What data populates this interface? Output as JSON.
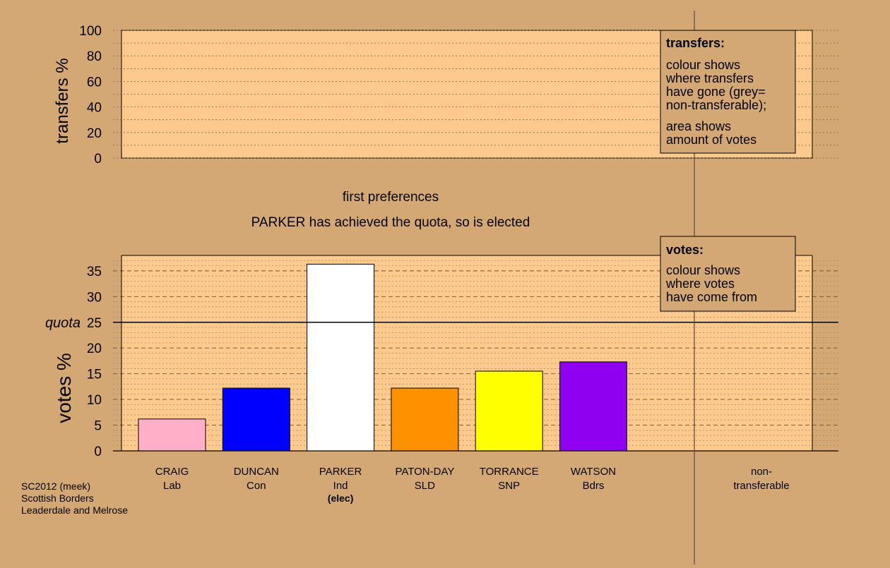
{
  "colors": {
    "background": "#d4a874",
    "plot_fill": "#fec98c",
    "info_box_fill": "#d4a874"
  },
  "header": {
    "stage_label": "first preferences",
    "status_message": "PARKER has achieved the quota, so is elected"
  },
  "footer": {
    "lines": [
      "SC2012 (meek)",
      "Scottish Borders",
      "Leaderdale and Melrose"
    ]
  },
  "transfers_box": {
    "title": "transfers:",
    "para1": [
      "colour shows",
      "where transfers",
      "have gone (grey=",
      "non-transferable);"
    ],
    "para2": [
      "area shows",
      "amount of votes"
    ]
  },
  "votes_box": {
    "title": "votes:",
    "para1": [
      "colour shows",
      "where votes",
      "have come from"
    ]
  },
  "chart_data": [
    {
      "type": "bar",
      "ylabel": "transfers %",
      "ylim": [
        0,
        100
      ],
      "yticks": [
        0,
        20,
        40,
        60,
        80,
        100
      ],
      "values": [],
      "grid": true
    },
    {
      "type": "bar",
      "ylabel": "votes %",
      "ylim": [
        0,
        38
      ],
      "yticks": [
        0,
        5,
        10,
        15,
        20,
        25,
        30,
        35
      ],
      "quota": 25,
      "quota_label": "quota",
      "grid": true,
      "categories": [
        {
          "name": "CRAIG",
          "party": "Lab",
          "value": 6.2,
          "color": "#ffb0c8",
          "note": ""
        },
        {
          "name": "DUNCAN",
          "party": "Con",
          "value": 12.2,
          "color": "#0000ff",
          "note": ""
        },
        {
          "name": "PARKER",
          "party": "Ind",
          "value": 36.3,
          "color": "#ffffff",
          "note": "(elec)"
        },
        {
          "name": "PATON-DAY",
          "party": "SLD",
          "value": 12.2,
          "color": "#ff9000",
          "note": ""
        },
        {
          "name": "TORRANCE",
          "party": "SNP",
          "value": 15.5,
          "color": "#ffff00",
          "note": ""
        },
        {
          "name": "WATSON",
          "party": "Bdrs",
          "value": 17.3,
          "color": "#9000f0",
          "note": ""
        }
      ],
      "nontransferable": {
        "label_lines": [
          "non-",
          "transferable"
        ],
        "value": 0
      }
    }
  ]
}
